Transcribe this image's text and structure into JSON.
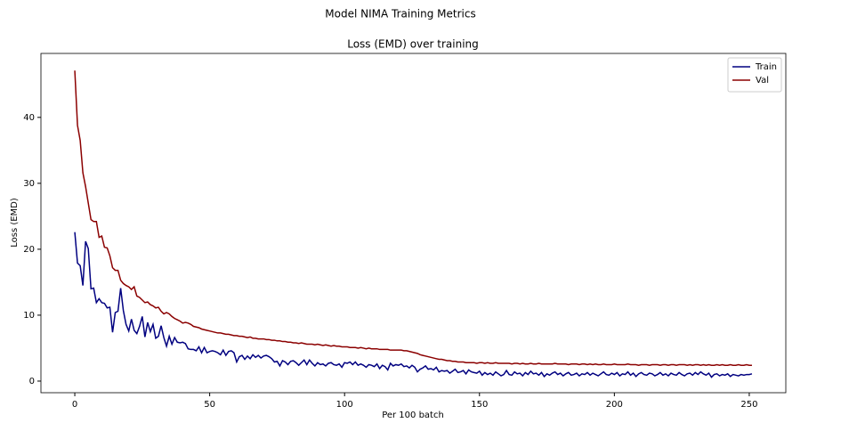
{
  "chart_data": {
    "type": "line",
    "suptitle": "Model NIMA Training Metrics",
    "title": "Loss (EMD) over training",
    "xlabel": "Per 100 batch",
    "ylabel": "Loss (EMD)",
    "x": [
      0,
      1,
      2,
      3,
      4,
      5,
      6,
      7,
      8,
      9,
      10,
      11,
      12,
      13,
      14,
      15,
      16,
      17,
      18,
      19,
      20,
      21,
      22,
      23,
      24,
      25,
      26,
      27,
      28,
      29,
      30,
      31,
      32,
      33,
      34,
      35,
      36,
      37,
      38,
      39,
      40,
      41,
      42,
      43,
      44,
      45,
      46,
      47,
      48,
      49,
      50,
      51,
      52,
      53,
      54,
      55,
      56,
      57,
      58,
      59,
      60,
      61,
      62,
      63,
      64,
      65,
      66,
      67,
      68,
      69,
      70,
      71,
      72,
      73,
      74,
      75,
      76,
      77,
      78,
      79,
      80,
      81,
      82,
      83,
      84,
      85,
      86,
      87,
      88,
      89,
      90,
      91,
      92,
      93,
      94,
      95,
      96,
      97,
      98,
      99,
      100,
      101,
      102,
      103,
      104,
      105,
      106,
      107,
      108,
      109,
      110,
      111,
      112,
      113,
      114,
      115,
      116,
      117,
      118,
      119,
      120,
      121,
      122,
      123,
      124,
      125,
      126,
      127,
      128,
      129,
      130,
      131,
      132,
      133,
      134,
      135,
      136,
      137,
      138,
      139,
      140,
      141,
      142,
      143,
      144,
      145,
      146,
      147,
      148,
      149,
      150,
      151,
      152,
      153,
      154,
      155,
      156,
      157,
      158,
      159,
      160,
      161,
      162,
      163,
      164,
      165,
      166,
      167,
      168,
      169,
      170,
      171,
      172,
      173,
      174,
      175,
      176,
      177,
      178,
      179,
      180,
      181,
      182,
      183,
      184,
      185,
      186,
      187,
      188,
      189,
      190,
      191,
      192,
      193,
      194,
      195,
      196,
      197,
      198,
      199,
      200,
      201,
      202,
      203,
      204,
      205,
      206,
      207,
      208,
      209,
      210,
      211,
      212,
      213,
      214,
      215,
      216,
      217,
      218,
      219,
      220,
      221,
      222,
      223,
      224,
      225,
      226,
      227,
      228,
      229,
      230,
      231,
      232,
      233,
      234,
      235,
      236,
      237,
      238,
      239,
      240,
      241,
      242,
      243,
      244,
      245,
      246,
      247,
      248,
      249,
      250,
      251
    ],
    "series": [
      {
        "name": "Train",
        "color": "#000080",
        "values": [
          22.6,
          17.9,
          17.5,
          14.5,
          21.2,
          20.1,
          14.0,
          14.1,
          11.9,
          12.5,
          11.9,
          11.8,
          11.1,
          11.2,
          7.4,
          10.4,
          10.6,
          14.1,
          10.7,
          8.6,
          7.6,
          9.4,
          7.7,
          7.2,
          8.3,
          9.8,
          6.7,
          8.9,
          7.5,
          8.6,
          6.5,
          6.8,
          8.4,
          6.6,
          5.3,
          6.8,
          5.6,
          6.6,
          5.9,
          5.8,
          5.9,
          5.7,
          4.9,
          4.8,
          4.8,
          4.6,
          5.2,
          4.3,
          5.1,
          4.3,
          4.5,
          4.6,
          4.5,
          4.3,
          4.0,
          4.7,
          3.9,
          4.5,
          4.6,
          4.3,
          2.9,
          3.7,
          3.9,
          3.3,
          3.8,
          3.4,
          4.0,
          3.6,
          3.9,
          3.5,
          3.8,
          3.9,
          3.7,
          3.4,
          2.9,
          3.0,
          2.3,
          3.1,
          2.9,
          2.5,
          3.0,
          3.1,
          2.8,
          2.4,
          2.8,
          3.2,
          2.5,
          3.2,
          2.7,
          2.3,
          2.8,
          2.5,
          2.6,
          2.3,
          2.7,
          2.8,
          2.5,
          2.4,
          2.6,
          2.1,
          2.8,
          2.7,
          2.9,
          2.5,
          2.9,
          2.4,
          2.6,
          2.4,
          2.1,
          2.5,
          2.4,
          2.2,
          2.6,
          1.9,
          2.4,
          2.2,
          1.7,
          2.7,
          2.3,
          2.5,
          2.4,
          2.6,
          2.2,
          2.3,
          2.0,
          2.4,
          2.1,
          1.4,
          1.8,
          2.0,
          2.3,
          1.8,
          1.9,
          1.7,
          2.1,
          1.4,
          1.6,
          1.5,
          1.6,
          1.2,
          1.5,
          1.8,
          1.3,
          1.4,
          1.6,
          1.1,
          1.7,
          1.4,
          1.3,
          1.2,
          1.5,
          0.9,
          1.3,
          1.0,
          1.2,
          0.9,
          1.4,
          1.1,
          0.8,
          1.0,
          1.6,
          1.0,
          0.9,
          1.4,
          1.1,
          1.2,
          0.8,
          1.3,
          1.0,
          1.5,
          1.1,
          1.2,
          0.9,
          1.3,
          0.7,
          1.1,
          0.9,
          1.2,
          1.4,
          1.0,
          1.2,
          0.8,
          1.1,
          1.3,
          0.9,
          1.0,
          1.2,
          0.8,
          1.1,
          1.0,
          1.3,
          0.9,
          1.2,
          1.0,
          0.8,
          1.1,
          1.4,
          1.0,
          0.9,
          1.2,
          1.0,
          1.3,
          0.8,
          1.1,
          1.0,
          1.4,
          0.9,
          1.2,
          0.7,
          1.1,
          1.3,
          1.0,
          0.9,
          1.2,
          1.1,
          0.8,
          1.0,
          1.3,
          0.9,
          1.1,
          0.8,
          1.2,
          1.0,
          0.9,
          1.3,
          1.0,
          0.8,
          1.1,
          1.2,
          0.9,
          1.3,
          1.0,
          1.4,
          1.1,
          0.9,
          1.2,
          0.6,
          1.0,
          1.1,
          0.8,
          1.0,
          0.9,
          1.1,
          0.7,
          1.0,
          0.9,
          0.8,
          1.0,
          0.9,
          1.0,
          1.0,
          1.1
        ]
      },
      {
        "name": "Val",
        "color": "#8b0000",
        "values": [
          47.1,
          38.8,
          36.5,
          31.6,
          29.5,
          27.0,
          24.5,
          24.2,
          24.2,
          21.8,
          22.0,
          20.3,
          20.2,
          19.0,
          17.2,
          16.8,
          16.8,
          15.3,
          14.8,
          14.5,
          14.3,
          13.9,
          14.3,
          12.9,
          12.7,
          12.3,
          11.9,
          12.0,
          11.6,
          11.4,
          11.1,
          11.2,
          10.6,
          10.2,
          10.4,
          10.2,
          9.8,
          9.5,
          9.3,
          9.1,
          8.8,
          8.9,
          8.8,
          8.6,
          8.3,
          8.2,
          8.1,
          7.9,
          7.8,
          7.7,
          7.6,
          7.5,
          7.4,
          7.3,
          7.3,
          7.2,
          7.1,
          7.1,
          7.0,
          6.9,
          6.9,
          6.8,
          6.8,
          6.7,
          6.6,
          6.7,
          6.5,
          6.5,
          6.4,
          6.4,
          6.4,
          6.3,
          6.3,
          6.2,
          6.2,
          6.1,
          6.1,
          6.0,
          6.0,
          5.9,
          5.9,
          5.8,
          5.8,
          5.7,
          5.8,
          5.7,
          5.6,
          5.6,
          5.6,
          5.5,
          5.6,
          5.5,
          5.4,
          5.5,
          5.4,
          5.3,
          5.4,
          5.3,
          5.3,
          5.2,
          5.2,
          5.2,
          5.1,
          5.1,
          5.1,
          5.0,
          5.1,
          5.0,
          4.9,
          5.0,
          4.9,
          4.9,
          4.9,
          4.8,
          4.8,
          4.8,
          4.8,
          4.7,
          4.7,
          4.7,
          4.7,
          4.7,
          4.6,
          4.6,
          4.5,
          4.4,
          4.3,
          4.2,
          4.0,
          3.9,
          3.8,
          3.7,
          3.6,
          3.5,
          3.4,
          3.3,
          3.3,
          3.2,
          3.1,
          3.1,
          3.0,
          3.0,
          2.9,
          2.9,
          2.9,
          2.8,
          2.8,
          2.8,
          2.8,
          2.7,
          2.8,
          2.8,
          2.7,
          2.8,
          2.7,
          2.7,
          2.8,
          2.7,
          2.7,
          2.7,
          2.7,
          2.7,
          2.6,
          2.7,
          2.7,
          2.6,
          2.7,
          2.6,
          2.6,
          2.7,
          2.6,
          2.6,
          2.7,
          2.6,
          2.6,
          2.6,
          2.6,
          2.6,
          2.7,
          2.6,
          2.6,
          2.6,
          2.6,
          2.5,
          2.6,
          2.6,
          2.6,
          2.5,
          2.6,
          2.6,
          2.5,
          2.6,
          2.5,
          2.6,
          2.5,
          2.5,
          2.6,
          2.5,
          2.5,
          2.5,
          2.6,
          2.5,
          2.5,
          2.5,
          2.5,
          2.6,
          2.5,
          2.5,
          2.5,
          2.4,
          2.5,
          2.5,
          2.5,
          2.4,
          2.5,
          2.5,
          2.5,
          2.4,
          2.5,
          2.5,
          2.4,
          2.5,
          2.5,
          2.4,
          2.5,
          2.5,
          2.5,
          2.4,
          2.5,
          2.4,
          2.5,
          2.5,
          2.4,
          2.5,
          2.4,
          2.5,
          2.4,
          2.4,
          2.5,
          2.4,
          2.5,
          2.4,
          2.4,
          2.5,
          2.4,
          2.4,
          2.5,
          2.4,
          2.4,
          2.5,
          2.4,
          2.4
        ]
      }
    ],
    "xlim": [
      -12.55,
      263.55
    ],
    "xticks": [
      0,
      50,
      100,
      150,
      200,
      250
    ],
    "ylim": [
      -1.76,
      49.7
    ],
    "yticks": [
      0,
      10,
      20,
      30,
      40
    ],
    "grid": false,
    "legend": "upper right"
  }
}
